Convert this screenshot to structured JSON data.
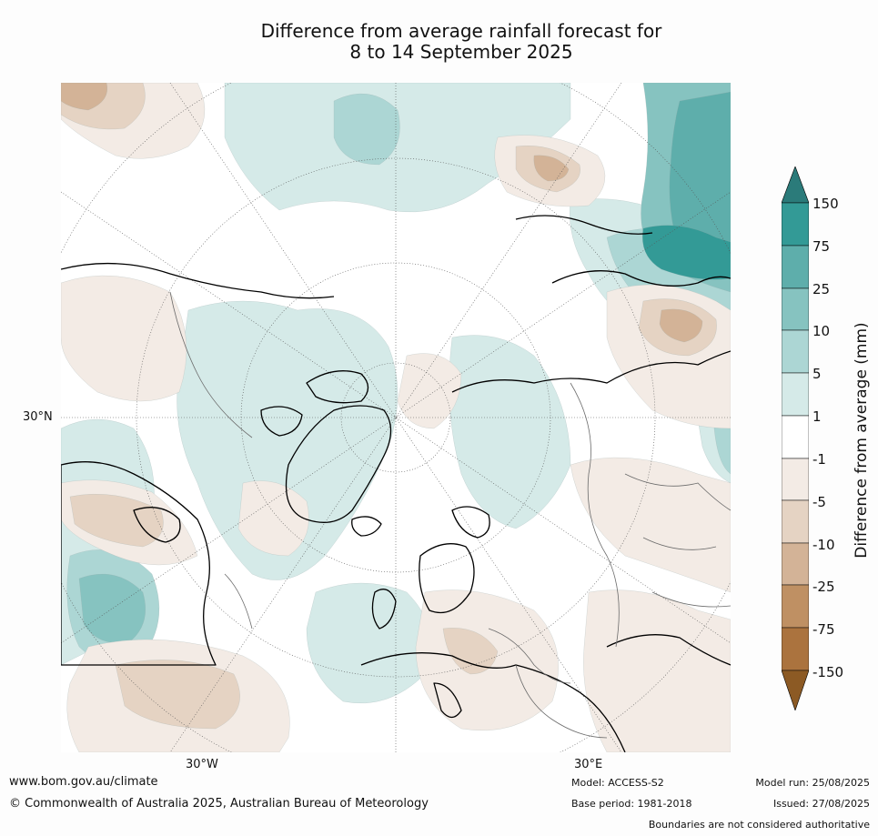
{
  "title": {
    "line1": "Difference from average rainfall forecast for",
    "line2": "8 to 14 September 2025"
  },
  "axis_labels": {
    "lat_30n": "30°N",
    "lon_30w": "30°W",
    "lon_30e": "30°E"
  },
  "colorbar": {
    "title": "Difference from average (mm)",
    "ticks": [
      "150",
      "75",
      "25",
      "10",
      "5",
      "1",
      "-1",
      "-5",
      "-10",
      "-25",
      "-75",
      "-150"
    ],
    "colors": {
      "over_150": "#2b7b7a",
      "75_150": "#339a96",
      "25_75": "#5eaeab",
      "10_25": "#86c3c0",
      "5_10": "#acd6d4",
      "1_5": "#d5eae8",
      "neutral": "#ffffff",
      "m1_m5": "#f3ebe5",
      "m5_m10": "#e5d3c3",
      "m10_m25": "#d3b397",
      "m25_m75": "#bf9063",
      "m75_m150": "#ab733e",
      "under_m150": "#8c5a24"
    }
  },
  "footer": {
    "url": "www.bom.gov.au/climate",
    "copyright": "© Commonwealth of Australia 2025, Australian Bureau of Meteorology",
    "model": "Model: ACCESS-S2",
    "base_period": "Base period: 1981-2018",
    "model_run": "Model run: 25/08/2025",
    "issued": "Issued: 27/08/2025",
    "disclaimer": "Boundaries are not considered authoritative"
  }
}
